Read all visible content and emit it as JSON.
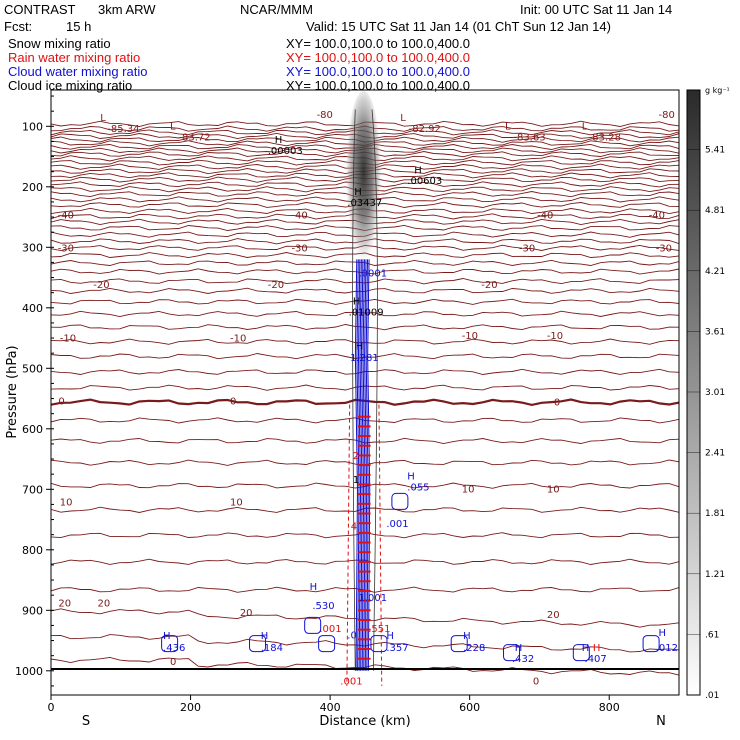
{
  "header": {
    "model": "CONTRAST",
    "resolution": "3km ARW",
    "center": "NCAR/MMM",
    "init": "Init: 00 UTC Sat 11 Jan 14",
    "fcst_label": "Fcst:",
    "fcst_value": "15 h",
    "valid": "Valid: 15 UTC Sat 11 Jan 14 (01 ChT Sun 12 Jan 14)",
    "fields": [
      {
        "name": "Snow mixing ratio",
        "xy": "XY= 100.0,100.0 to 100.0,400.0",
        "color": "#000000"
      },
      {
        "name": "Rain water mixing ratio",
        "xy": "XY= 100.0,100.0 to 100.0,400.0",
        "color": "#e01010"
      },
      {
        "name": "Cloud water mixing ratio",
        "xy": "XY= 100.0,100.0 to 100.0,400.0",
        "color": "#1010d0"
      },
      {
        "name": "Cloud ice mixing ratio",
        "xy": "XY= 100.0,100.0 to 100.0,400.0",
        "color": "#000000"
      }
    ]
  },
  "chart_data": {
    "type": "cross-section contour",
    "xlabel": "Distance (km)",
    "ylabel": "Pressure (hPa)",
    "xlim": [
      0,
      900
    ],
    "ylim": [
      1040,
      40
    ],
    "x_ticks": [
      0,
      200,
      400,
      600,
      800
    ],
    "y_ticks": [
      100,
      200,
      300,
      400,
      500,
      600,
      700,
      800,
      900,
      1000
    ],
    "x_end_labels": {
      "left": "S",
      "right": "N"
    },
    "temperature_labels": [
      {
        "text": "-80",
        "x": 372,
        "p": 80
      },
      {
        "text": "-80",
        "x": 862,
        "p": 80
      },
      {
        "text": "-40",
        "x": 1,
        "p": 246
      },
      {
        "text": "-40",
        "x": 336,
        "p": 246
      },
      {
        "text": "-40",
        "x": 688,
        "p": 246
      },
      {
        "text": "-40",
        "x": 848,
        "p": 246
      },
      {
        "text": "-30",
        "x": 1,
        "p": 300
      },
      {
        "text": "-30",
        "x": 336,
        "p": 300
      },
      {
        "text": "-30",
        "x": 662,
        "p": 300
      },
      {
        "text": "-30",
        "x": 858,
        "p": 300
      },
      {
        "text": "-20",
        "x": 52,
        "p": 361
      },
      {
        "text": "-20",
        "x": 302,
        "p": 361
      },
      {
        "text": "-20",
        "x": 608,
        "p": 361
      },
      {
        "text": "-10",
        "x": 4,
        "p": 449
      },
      {
        "text": "-10",
        "x": 248,
        "p": 449
      },
      {
        "text": "-10",
        "x": 580,
        "p": 445
      },
      {
        "text": "-10",
        "x": 702,
        "p": 445
      },
      {
        "text": "0",
        "x": 2,
        "p": 553
      },
      {
        "text": "0",
        "x": 248,
        "p": 553
      },
      {
        "text": "0",
        "x": 712,
        "p": 555
      },
      {
        "text": "10",
        "x": 4,
        "p": 720
      },
      {
        "text": "10",
        "x": 248,
        "p": 720
      },
      {
        "text": "10",
        "x": 580,
        "p": 699
      },
      {
        "text": "10",
        "x": 702,
        "p": 699
      },
      {
        "text": "20",
        "x": 2,
        "p": 887
      },
      {
        "text": "20",
        "x": 58,
        "p": 887
      },
      {
        "text": "20",
        "x": 262,
        "p": 903
      },
      {
        "text": "20",
        "x": 702,
        "p": 906
      },
      {
        "text": "0",
        "x": 162,
        "p": 984
      },
      {
        "text": "0",
        "x": 682,
        "p": 1016
      }
    ],
    "extrema_labels": [
      {
        "text": "L",
        "x": 62,
        "p": 85,
        "color": "#8b1a1a"
      },
      {
        "text": "-85.34",
        "x": 72,
        "p": 103,
        "color": "#8b1a1a"
      },
      {
        "text": "L",
        "x": 162,
        "p": 99,
        "color": "#8b1a1a"
      },
      {
        "text": "-83.72",
        "x": 174,
        "p": 117,
        "color": "#8b1a1a"
      },
      {
        "text": "L",
        "x": 492,
        "p": 85,
        "color": "#8b1a1a"
      },
      {
        "text": "-82.92",
        "x": 504,
        "p": 103,
        "color": "#8b1a1a"
      },
      {
        "text": "L",
        "x": 642,
        "p": 99,
        "color": "#8b1a1a"
      },
      {
        "text": "-83.63",
        "x": 654,
        "p": 117,
        "color": "#8b1a1a"
      },
      {
        "text": "L",
        "x": 752,
        "p": 99,
        "color": "#8b1a1a"
      },
      {
        "text": "-83.28",
        "x": 762,
        "p": 117,
        "color": "#8b1a1a"
      },
      {
        "text": "H",
        "x": 312,
        "p": 121,
        "color": "#000000"
      },
      {
        "text": ".00003",
        "x": 302,
        "p": 139,
        "color": "#000000"
      },
      {
        "text": "H",
        "x": 512,
        "p": 171,
        "color": "#000000"
      },
      {
        "text": ".00603",
        "x": 502,
        "p": 189,
        "color": "#000000"
      },
      {
        "text": "H",
        "x": 426,
        "p": 207,
        "color": "#000000"
      },
      {
        "text": ".03437",
        "x": 416,
        "p": 225,
        "color": "#000000"
      },
      {
        "text": ".0001",
        "x": 432,
        "p": 342,
        "color": "#1010d0"
      },
      {
        "text": "H",
        "x": 424,
        "p": 388,
        "color": "#000000"
      },
      {
        "text": ".01009",
        "x": 418,
        "p": 406,
        "color": "#000000"
      },
      {
        "text": "H",
        "x": 428,
        "p": 462,
        "color": "#000000"
      },
      {
        "text": "1.281",
        "x": 420,
        "p": 481,
        "color": "#1010d0"
      },
      {
        "text": "H",
        "x": 502,
        "p": 677,
        "color": "#1010d0"
      },
      {
        "text": ".055",
        "x": 502,
        "p": 695,
        "color": "#1010d0"
      },
      {
        "text": ".001",
        "x": 472,
        "p": 756,
        "color": "#1010d0"
      },
      {
        "text": "1.001",
        "x": 432,
        "p": 878,
        "color": "#1010d0"
      },
      {
        "text": "H",
        "x": 362,
        "p": 860,
        "color": "#1010d0"
      },
      {
        "text": ".530",
        "x": 366,
        "p": 891,
        "color": "#1010d0"
      },
      {
        "text": ".001",
        "x": 376,
        "p": 929,
        "color": "#e01010"
      },
      {
        "text": ".551",
        "x": 446,
        "p": 929,
        "color": "#e01010"
      },
      {
        "text": ".0",
        "x": 416,
        "p": 940,
        "color": "#1010d0"
      },
      {
        "text": "H",
        "x": 152,
        "p": 941,
        "color": "#1010d0"
      },
      {
        "text": ".436",
        "x": 152,
        "p": 961,
        "color": "#1010d0"
      },
      {
        "text": "H",
        "x": 292,
        "p": 941,
        "color": "#1010d0"
      },
      {
        "text": ".184",
        "x": 292,
        "p": 961,
        "color": "#1010d0"
      },
      {
        "text": "H",
        "x": 472,
        "p": 941,
        "color": "#1010d0"
      },
      {
        "text": ".357",
        "x": 472,
        "p": 961,
        "color": "#1010d0"
      },
      {
        "text": "H",
        "x": 582,
        "p": 941,
        "color": "#1010d0"
      },
      {
        "text": ".228",
        "x": 582,
        "p": 961,
        "color": "#1010d0"
      },
      {
        "text": "H",
        "x": 656,
        "p": 961,
        "color": "#1010d0"
      },
      {
        "text": ".432",
        "x": 652,
        "p": 979,
        "color": "#1010d0"
      },
      {
        "text": "H",
        "x": 752,
        "p": 961,
        "color": "#1010d0"
      },
      {
        "text": "H",
        "x": 768,
        "p": 961,
        "color": "#e01010"
      },
      {
        "text": ".407",
        "x": 756,
        "p": 979,
        "color": "#1010d0"
      },
      {
        "text": "H",
        "x": 862,
        "p": 936,
        "color": "#1010d0"
      },
      {
        "text": ".012",
        "x": 858,
        "p": 961,
        "color": "#1010d0"
      },
      {
        "text": ".001",
        "x": 406,
        "p": 1016,
        "color": "#e01010"
      },
      {
        "text": "4",
        "x": 421,
        "p": 760,
        "color": "#e01010"
      },
      {
        "text": "1",
        "x": 424,
        "p": 683,
        "color": "#000000"
      },
      {
        "text": "2",
        "x": 424,
        "p": 643,
        "color": "#e01010"
      }
    ],
    "colorbar": {
      "unit": "g kg⁻¹",
      "levels": [
        ".01",
        ".61",
        "1.21",
        "1.81",
        "2.41",
        "3.01",
        "3.61",
        "4.21",
        "4.81",
        "5.41"
      ],
      "range": [
        0.01,
        6.0
      ]
    }
  }
}
